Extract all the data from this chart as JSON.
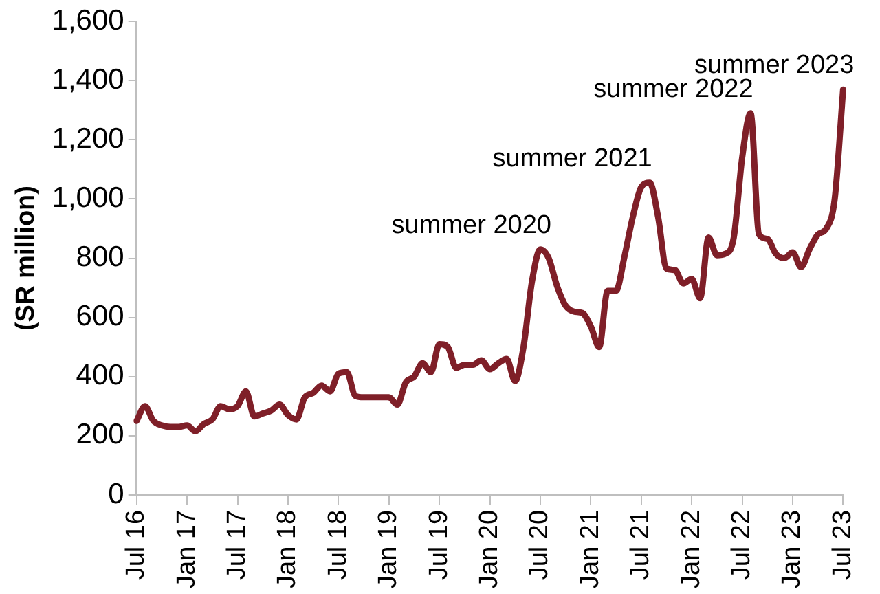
{
  "chart_data": {
    "type": "line",
    "ylabel": "(SR million)",
    "categories": [
      "Jul 16",
      null,
      null,
      null,
      null,
      null,
      "Jan 17",
      null,
      null,
      null,
      null,
      null,
      "Jul 17",
      null,
      null,
      null,
      null,
      null,
      "Jan 18",
      null,
      null,
      null,
      null,
      null,
      "Jul 18",
      null,
      null,
      null,
      null,
      null,
      "Jan 19",
      null,
      null,
      null,
      null,
      null,
      "Jul 19",
      null,
      null,
      null,
      null,
      null,
      "Jan 20",
      null,
      null,
      null,
      null,
      null,
      "Jul 20",
      null,
      null,
      null,
      null,
      null,
      "Jan 21",
      null,
      null,
      null,
      null,
      null,
      "Jul 21",
      null,
      null,
      null,
      null,
      null,
      "Jan 22",
      null,
      null,
      null,
      null,
      null,
      "Jul 22",
      null,
      null,
      null,
      null,
      null,
      "Jan 23",
      null,
      null,
      null,
      null,
      null,
      "Jul 23"
    ],
    "series": [
      {
        "color": "#7f1f28",
        "values": [
          250,
          300,
          250,
          235,
          230,
          230,
          235,
          215,
          240,
          255,
          300,
          290,
          300,
          350,
          265,
          275,
          285,
          305,
          270,
          255,
          330,
          345,
          370,
          350,
          410,
          415,
          335,
          330,
          330,
          330,
          330,
          305,
          380,
          400,
          445,
          415,
          510,
          500,
          430,
          440,
          440,
          455,
          425,
          445,
          460,
          385,
          500,
          720,
          830,
          800,
          705,
          640,
          620,
          615,
          570,
          500,
          690,
          690,
          805,
          940,
          1040,
          1055,
          940,
          765,
          760,
          715,
          730,
          665,
          870,
          810,
          815,
          870,
          1140,
          1290,
          880,
          865,
          815,
          800,
          820,
          770,
          830,
          880,
          900,
          1000,
          1370
        ]
      }
    ],
    "ylim": [
      0,
      1600
    ],
    "yticks": [
      0,
      200,
      400,
      600,
      800,
      {
        "value": 1000,
        "label": "1,000"
      },
      {
        "value": 1200,
        "label": "1,200"
      },
      {
        "value": 1400,
        "label": "1,400"
      },
      {
        "value": 1600,
        "label": "1,600"
      }
    ],
    "grid": false,
    "marker": "none",
    "line_style": "solid",
    "annotations": [
      {
        "text": "summer 2020",
        "x": "Jul 20",
        "y": 830
      },
      {
        "text": "summer 2021",
        "x": "Jul 21",
        "y": 1055
      },
      {
        "text": "summer 2022",
        "x": "Jul 22",
        "y": 1290
      },
      {
        "text": "summer 2023",
        "x": "Jul 23",
        "y": 1370
      }
    ]
  }
}
